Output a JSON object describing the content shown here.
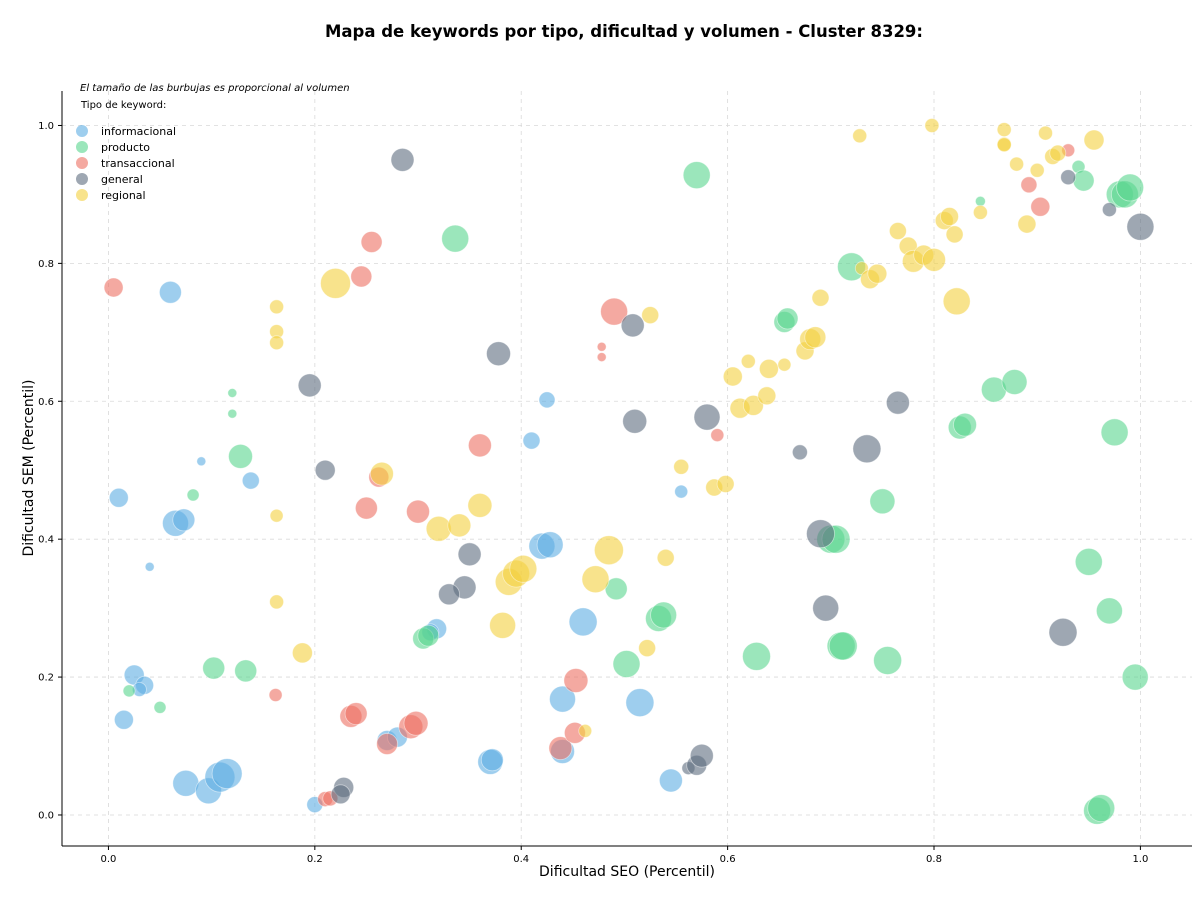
{
  "chart_data": {
    "type": "scatter",
    "title": "Mapa de keywords por tipo, dificultad y volumen - Cluster 8329:",
    "xlabel": "Dificultad SEO (Percentil)",
    "ylabel": "Dificultad SEM (Percentil)",
    "xlim": [
      -0.045,
      1.05
    ],
    "ylim": [
      -0.045,
      1.05
    ],
    "xticks": [
      "0.0",
      "0.2",
      "0.4",
      "0.6",
      "0.8",
      "1.0"
    ],
    "yticks": [
      "0.0",
      "0.2",
      "0.4",
      "0.6",
      "0.8",
      "1.0"
    ],
    "xtick_values": [
      0,
      0.2,
      0.4,
      0.6,
      0.8,
      1.0
    ],
    "ytick_values": [
      0,
      0.2,
      0.4,
      0.6,
      0.8,
      1.0
    ],
    "grid": true,
    "note": "El tamaño de las burbujas es proporcional al volumen",
    "legend": {
      "title": "Tipo de keyword:",
      "placement": "top-left"
    },
    "series": [
      {
        "name": "informacional",
        "color": "#5DADE2",
        "points": [
          [
            0.06,
            0.758,
            22
          ],
          [
            0.09,
            0.513,
            9
          ],
          [
            0.01,
            0.46,
            19
          ],
          [
            0.065,
            0.423,
            26
          ],
          [
            0.073,
            0.428,
            22
          ],
          [
            0.04,
            0.36,
            9
          ],
          [
            0.138,
            0.485,
            17
          ],
          [
            0.025,
            0.203,
            20
          ],
          [
            0.035,
            0.188,
            18
          ],
          [
            0.03,
            0.182,
            14
          ],
          [
            0.015,
            0.138,
            19
          ],
          [
            0.075,
            0.046,
            26
          ],
          [
            0.097,
            0.035,
            26
          ],
          [
            0.108,
            0.055,
            30
          ],
          [
            0.115,
            0.06,
            30
          ],
          [
            0.2,
            0.015,
            16
          ],
          [
            0.27,
            0.108,
            20
          ],
          [
            0.28,
            0.113,
            20
          ],
          [
            0.318,
            0.27,
            20
          ],
          [
            0.312,
            0.265,
            17
          ],
          [
            0.37,
            0.077,
            25
          ],
          [
            0.372,
            0.08,
            22
          ],
          [
            0.41,
            0.543,
            17
          ],
          [
            0.425,
            0.602,
            16
          ],
          [
            0.42,
            0.39,
            26
          ],
          [
            0.428,
            0.392,
            26
          ],
          [
            0.44,
            0.168,
            26
          ],
          [
            0.44,
            0.092,
            24
          ],
          [
            0.46,
            0.28,
            28
          ],
          [
            0.515,
            0.163,
            28
          ],
          [
            0.545,
            0.05,
            23
          ],
          [
            0.555,
            0.469,
            13
          ]
        ]
      },
      {
        "name": "producto",
        "color": "#58D68D",
        "points": [
          [
            0.12,
            0.612,
            9
          ],
          [
            0.12,
            0.582,
            9
          ],
          [
            0.082,
            0.464,
            12
          ],
          [
            0.128,
            0.52,
            24
          ],
          [
            0.02,
            0.18,
            12
          ],
          [
            0.05,
            0.156,
            12
          ],
          [
            0.102,
            0.213,
            22
          ],
          [
            0.133,
            0.209,
            22
          ],
          [
            0.305,
            0.256,
            21
          ],
          [
            0.31,
            0.26,
            21
          ],
          [
            0.336,
            0.836,
            27
          ],
          [
            0.492,
            0.328,
            22
          ],
          [
            0.502,
            0.219,
            27
          ],
          [
            0.533,
            0.285,
            26
          ],
          [
            0.538,
            0.29,
            26
          ],
          [
            0.57,
            0.928,
            27
          ],
          [
            0.628,
            0.23,
            28
          ],
          [
            0.655,
            0.715,
            21
          ],
          [
            0.658,
            0.72,
            21
          ],
          [
            0.7,
            0.4,
            28
          ],
          [
            0.705,
            0.4,
            28
          ],
          [
            0.71,
            0.245,
            28
          ],
          [
            0.712,
            0.245,
            28
          ],
          [
            0.72,
            0.795,
            28
          ],
          [
            0.75,
            0.455,
            25
          ],
          [
            0.755,
            0.224,
            28
          ],
          [
            0.825,
            0.562,
            23
          ],
          [
            0.83,
            0.566,
            23
          ],
          [
            0.845,
            0.89,
            10
          ],
          [
            0.858,
            0.617,
            25
          ],
          [
            0.878,
            0.628,
            25
          ],
          [
            0.94,
            0.94,
            13
          ],
          [
            0.945,
            0.92,
            21
          ],
          [
            0.95,
            0.367,
            27
          ],
          [
            0.958,
            0.006,
            27
          ],
          [
            0.962,
            0.01,
            27
          ],
          [
            0.975,
            0.555,
            27
          ],
          [
            0.97,
            0.296,
            26
          ],
          [
            0.98,
            0.9,
            27
          ],
          [
            0.985,
            0.9,
            27
          ],
          [
            0.99,
            0.91,
            27
          ],
          [
            0.995,
            0.2,
            26
          ]
        ]
      },
      {
        "name": "transaccional",
        "color": "#EC7063",
        "points": [
          [
            0.005,
            0.765,
            19
          ],
          [
            0.245,
            0.781,
            21
          ],
          [
            0.255,
            0.831,
            21
          ],
          [
            0.262,
            0.49,
            20
          ],
          [
            0.25,
            0.445,
            22
          ],
          [
            0.3,
            0.44,
            23
          ],
          [
            0.36,
            0.536,
            23
          ],
          [
            0.162,
            0.174,
            13
          ],
          [
            0.21,
            0.023,
            15
          ],
          [
            0.215,
            0.024,
            15
          ],
          [
            0.235,
            0.143,
            22
          ],
          [
            0.24,
            0.147,
            22
          ],
          [
            0.27,
            0.103,
            21
          ],
          [
            0.293,
            0.128,
            24
          ],
          [
            0.298,
            0.133,
            24
          ],
          [
            0.438,
            0.097,
            23
          ],
          [
            0.452,
            0.119,
            21
          ],
          [
            0.453,
            0.195,
            24
          ],
          [
            0.49,
            0.73,
            27
          ],
          [
            0.478,
            0.679,
            9
          ],
          [
            0.478,
            0.664,
            9
          ],
          [
            0.59,
            0.551,
            13
          ],
          [
            0.892,
            0.914,
            16
          ],
          [
            0.903,
            0.882,
            19
          ],
          [
            0.93,
            0.964,
            13
          ]
        ]
      },
      {
        "name": "general",
        "color": "#5D6D7E",
        "points": [
          [
            0.285,
            0.95,
            23
          ],
          [
            0.195,
            0.623,
            23
          ],
          [
            0.21,
            0.5,
            20
          ],
          [
            0.378,
            0.669,
            24
          ],
          [
            0.35,
            0.378,
            23
          ],
          [
            0.345,
            0.33,
            23
          ],
          [
            0.33,
            0.32,
            21
          ],
          [
            0.228,
            0.04,
            20
          ],
          [
            0.225,
            0.03,
            19
          ],
          [
            0.508,
            0.71,
            23
          ],
          [
            0.51,
            0.571,
            24
          ],
          [
            0.562,
            0.068,
            13
          ],
          [
            0.57,
            0.072,
            20
          ],
          [
            0.575,
            0.086,
            23
          ],
          [
            0.58,
            0.577,
            26
          ],
          [
            0.67,
            0.526,
            15
          ],
          [
            0.69,
            0.408,
            28
          ],
          [
            0.695,
            0.3,
            26
          ],
          [
            0.735,
            0.531,
            28
          ],
          [
            0.765,
            0.598,
            23
          ],
          [
            0.925,
            0.265,
            28
          ],
          [
            0.93,
            0.925,
            15
          ],
          [
            0.97,
            0.878,
            14
          ],
          [
            1.0,
            0.853,
            27
          ]
        ]
      },
      {
        "name": "regional",
        "color": "#F4D03F",
        "points": [
          [
            0.163,
            0.737,
            14
          ],
          [
            0.163,
            0.701,
            14
          ],
          [
            0.163,
            0.685,
            14
          ],
          [
            0.163,
            0.434,
            13
          ],
          [
            0.163,
            0.309,
            14
          ],
          [
            0.22,
            0.771,
            30
          ],
          [
            0.188,
            0.235,
            20
          ],
          [
            0.265,
            0.495,
            23
          ],
          [
            0.32,
            0.415,
            25
          ],
          [
            0.34,
            0.42,
            23
          ],
          [
            0.36,
            0.449,
            24
          ],
          [
            0.382,
            0.275,
            26
          ],
          [
            0.388,
            0.338,
            27
          ],
          [
            0.395,
            0.35,
            27
          ],
          [
            0.402,
            0.357,
            27
          ],
          [
            0.472,
            0.342,
            27
          ],
          [
            0.485,
            0.384,
            29
          ],
          [
            0.462,
            0.122,
            13
          ],
          [
            0.522,
            0.242,
            17
          ],
          [
            0.525,
            0.725,
            17
          ],
          [
            0.54,
            0.373,
            17
          ],
          [
            0.555,
            0.505,
            15
          ],
          [
            0.587,
            0.475,
            17
          ],
          [
            0.598,
            0.48,
            17
          ],
          [
            0.605,
            0.636,
            19
          ],
          [
            0.612,
            0.59,
            20
          ],
          [
            0.62,
            0.658,
            14
          ],
          [
            0.625,
            0.594,
            20
          ],
          [
            0.638,
            0.608,
            18
          ],
          [
            0.64,
            0.647,
            19
          ],
          [
            0.655,
            0.653,
            13
          ],
          [
            0.675,
            0.673,
            18
          ],
          [
            0.68,
            0.69,
            21
          ],
          [
            0.685,
            0.693,
            21
          ],
          [
            0.69,
            0.75,
            17
          ],
          [
            0.728,
            0.985,
            14
          ],
          [
            0.73,
            0.793,
            13
          ],
          [
            0.738,
            0.777,
            19
          ],
          [
            0.745,
            0.785,
            19
          ],
          [
            0.765,
            0.847,
            17
          ],
          [
            0.775,
            0.825,
            18
          ],
          [
            0.78,
            0.803,
            22
          ],
          [
            0.79,
            0.812,
            20
          ],
          [
            0.798,
            1.0,
            14
          ],
          [
            0.8,
            0.805,
            23
          ],
          [
            0.81,
            0.862,
            18
          ],
          [
            0.815,
            0.868,
            18
          ],
          [
            0.82,
            0.842,
            17
          ],
          [
            0.822,
            0.745,
            27
          ],
          [
            0.845,
            0.874,
            14
          ],
          [
            0.868,
            0.994,
            14
          ],
          [
            0.868,
            0.973,
            14
          ],
          [
            0.868,
            0.972,
            14
          ],
          [
            0.88,
            0.944,
            14
          ],
          [
            0.89,
            0.857,
            18
          ],
          [
            0.9,
            0.935,
            14
          ],
          [
            0.908,
            0.989,
            14
          ],
          [
            0.915,
            0.955,
            16
          ],
          [
            0.92,
            0.96,
            16
          ],
          [
            0.955,
            0.979,
            20
          ]
        ]
      }
    ]
  }
}
